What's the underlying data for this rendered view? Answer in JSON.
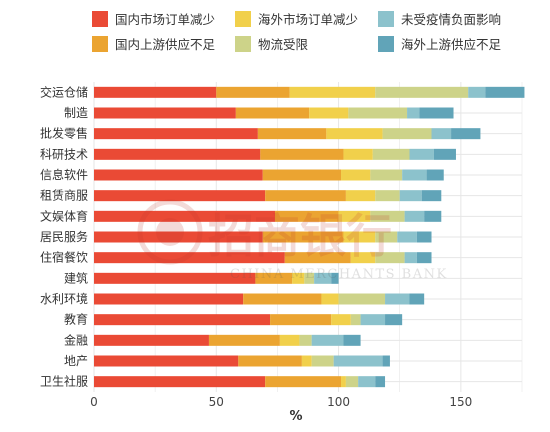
{
  "chart_data": {
    "type": "bar",
    "orientation": "horizontal",
    "stacked": true,
    "xlabel": "%",
    "xlim": [
      0,
      175
    ],
    "xticks": [
      0,
      50,
      100,
      150
    ],
    "grid": true,
    "legend_position": "top",
    "categories": [
      "交运仓储",
      "制造",
      "批发零售",
      "科研技术",
      "信息软件",
      "租赁商服",
      "文娱体育",
      "居民服务",
      "住宿餐饮",
      "建筑",
      "水利环境",
      "教育",
      "金融",
      "地产",
      "卫生社服"
    ],
    "series": [
      {
        "name": "国内市场订单减少",
        "color": "#ea4a35",
        "values": [
          50,
          58,
          67,
          68,
          69,
          70,
          74,
          69,
          78,
          66,
          61,
          72,
          47,
          59,
          70
        ]
      },
      {
        "name": "国内上游供应不足",
        "color": "#eba431",
        "values": [
          30,
          30,
          28,
          34,
          32,
          33,
          26,
          33,
          27,
          15,
          32,
          25,
          29,
          26,
          31
        ]
      },
      {
        "name": "海外市场订单减少",
        "color": "#f1d04b",
        "values": [
          35,
          16,
          23,
          12,
          12,
          12,
          13,
          13,
          10,
          5,
          7,
          8,
          8,
          4,
          2
        ]
      },
      {
        "name": "物流受限",
        "color": "#cdd389",
        "values": [
          38,
          24,
          20,
          15,
          13,
          10,
          14,
          9,
          12,
          4,
          19,
          4,
          5,
          9,
          5
        ]
      },
      {
        "name": "未受疫情负面影响",
        "color": "#8cc2cc",
        "values": [
          7,
          5,
          8,
          10,
          10,
          9,
          8,
          8,
          5,
          7,
          10,
          10,
          13,
          20,
          7
        ]
      },
      {
        "name": "海外上游供应不足",
        "color": "#61a4b8",
        "values": [
          16,
          14,
          12,
          9,
          7,
          8,
          7,
          6,
          6,
          3,
          6,
          7,
          7,
          3,
          4
        ]
      }
    ]
  },
  "watermark": {
    "logo_text": "招商银行",
    "subtitle_text": "CHINA MERCHANTS BANK"
  },
  "colors": {
    "grid": "#e6e6e6",
    "background": "#ffffff"
  }
}
